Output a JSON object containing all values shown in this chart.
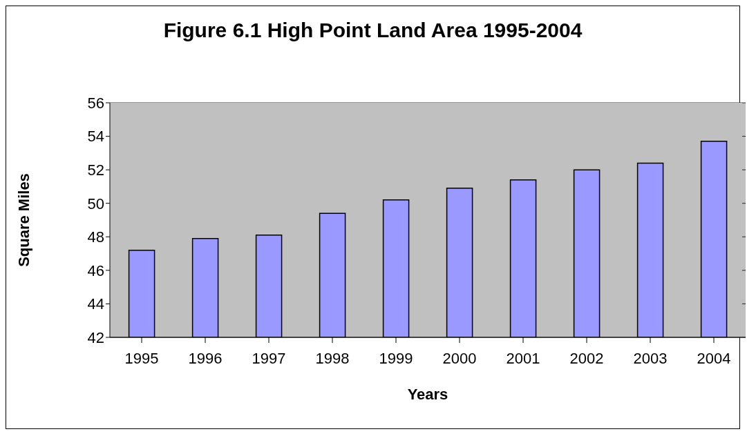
{
  "chart_data": {
    "type": "bar",
    "title": "Figure 6.1 High Point Land Area 1995-2004",
    "xlabel": "Years",
    "ylabel": "Square Miles",
    "categories": [
      "1995",
      "1996",
      "1997",
      "1998",
      "1999",
      "2000",
      "2001",
      "2002",
      "2003",
      "2004"
    ],
    "values": [
      47.2,
      47.9,
      48.1,
      49.4,
      50.2,
      50.9,
      51.4,
      52.0,
      52.4,
      53.7
    ],
    "color": "#9999ff",
    "ylim": [
      42,
      56
    ],
    "yticks": [
      42,
      44,
      46,
      48,
      50,
      52,
      54,
      56
    ],
    "grid": "y",
    "legend": false
  }
}
